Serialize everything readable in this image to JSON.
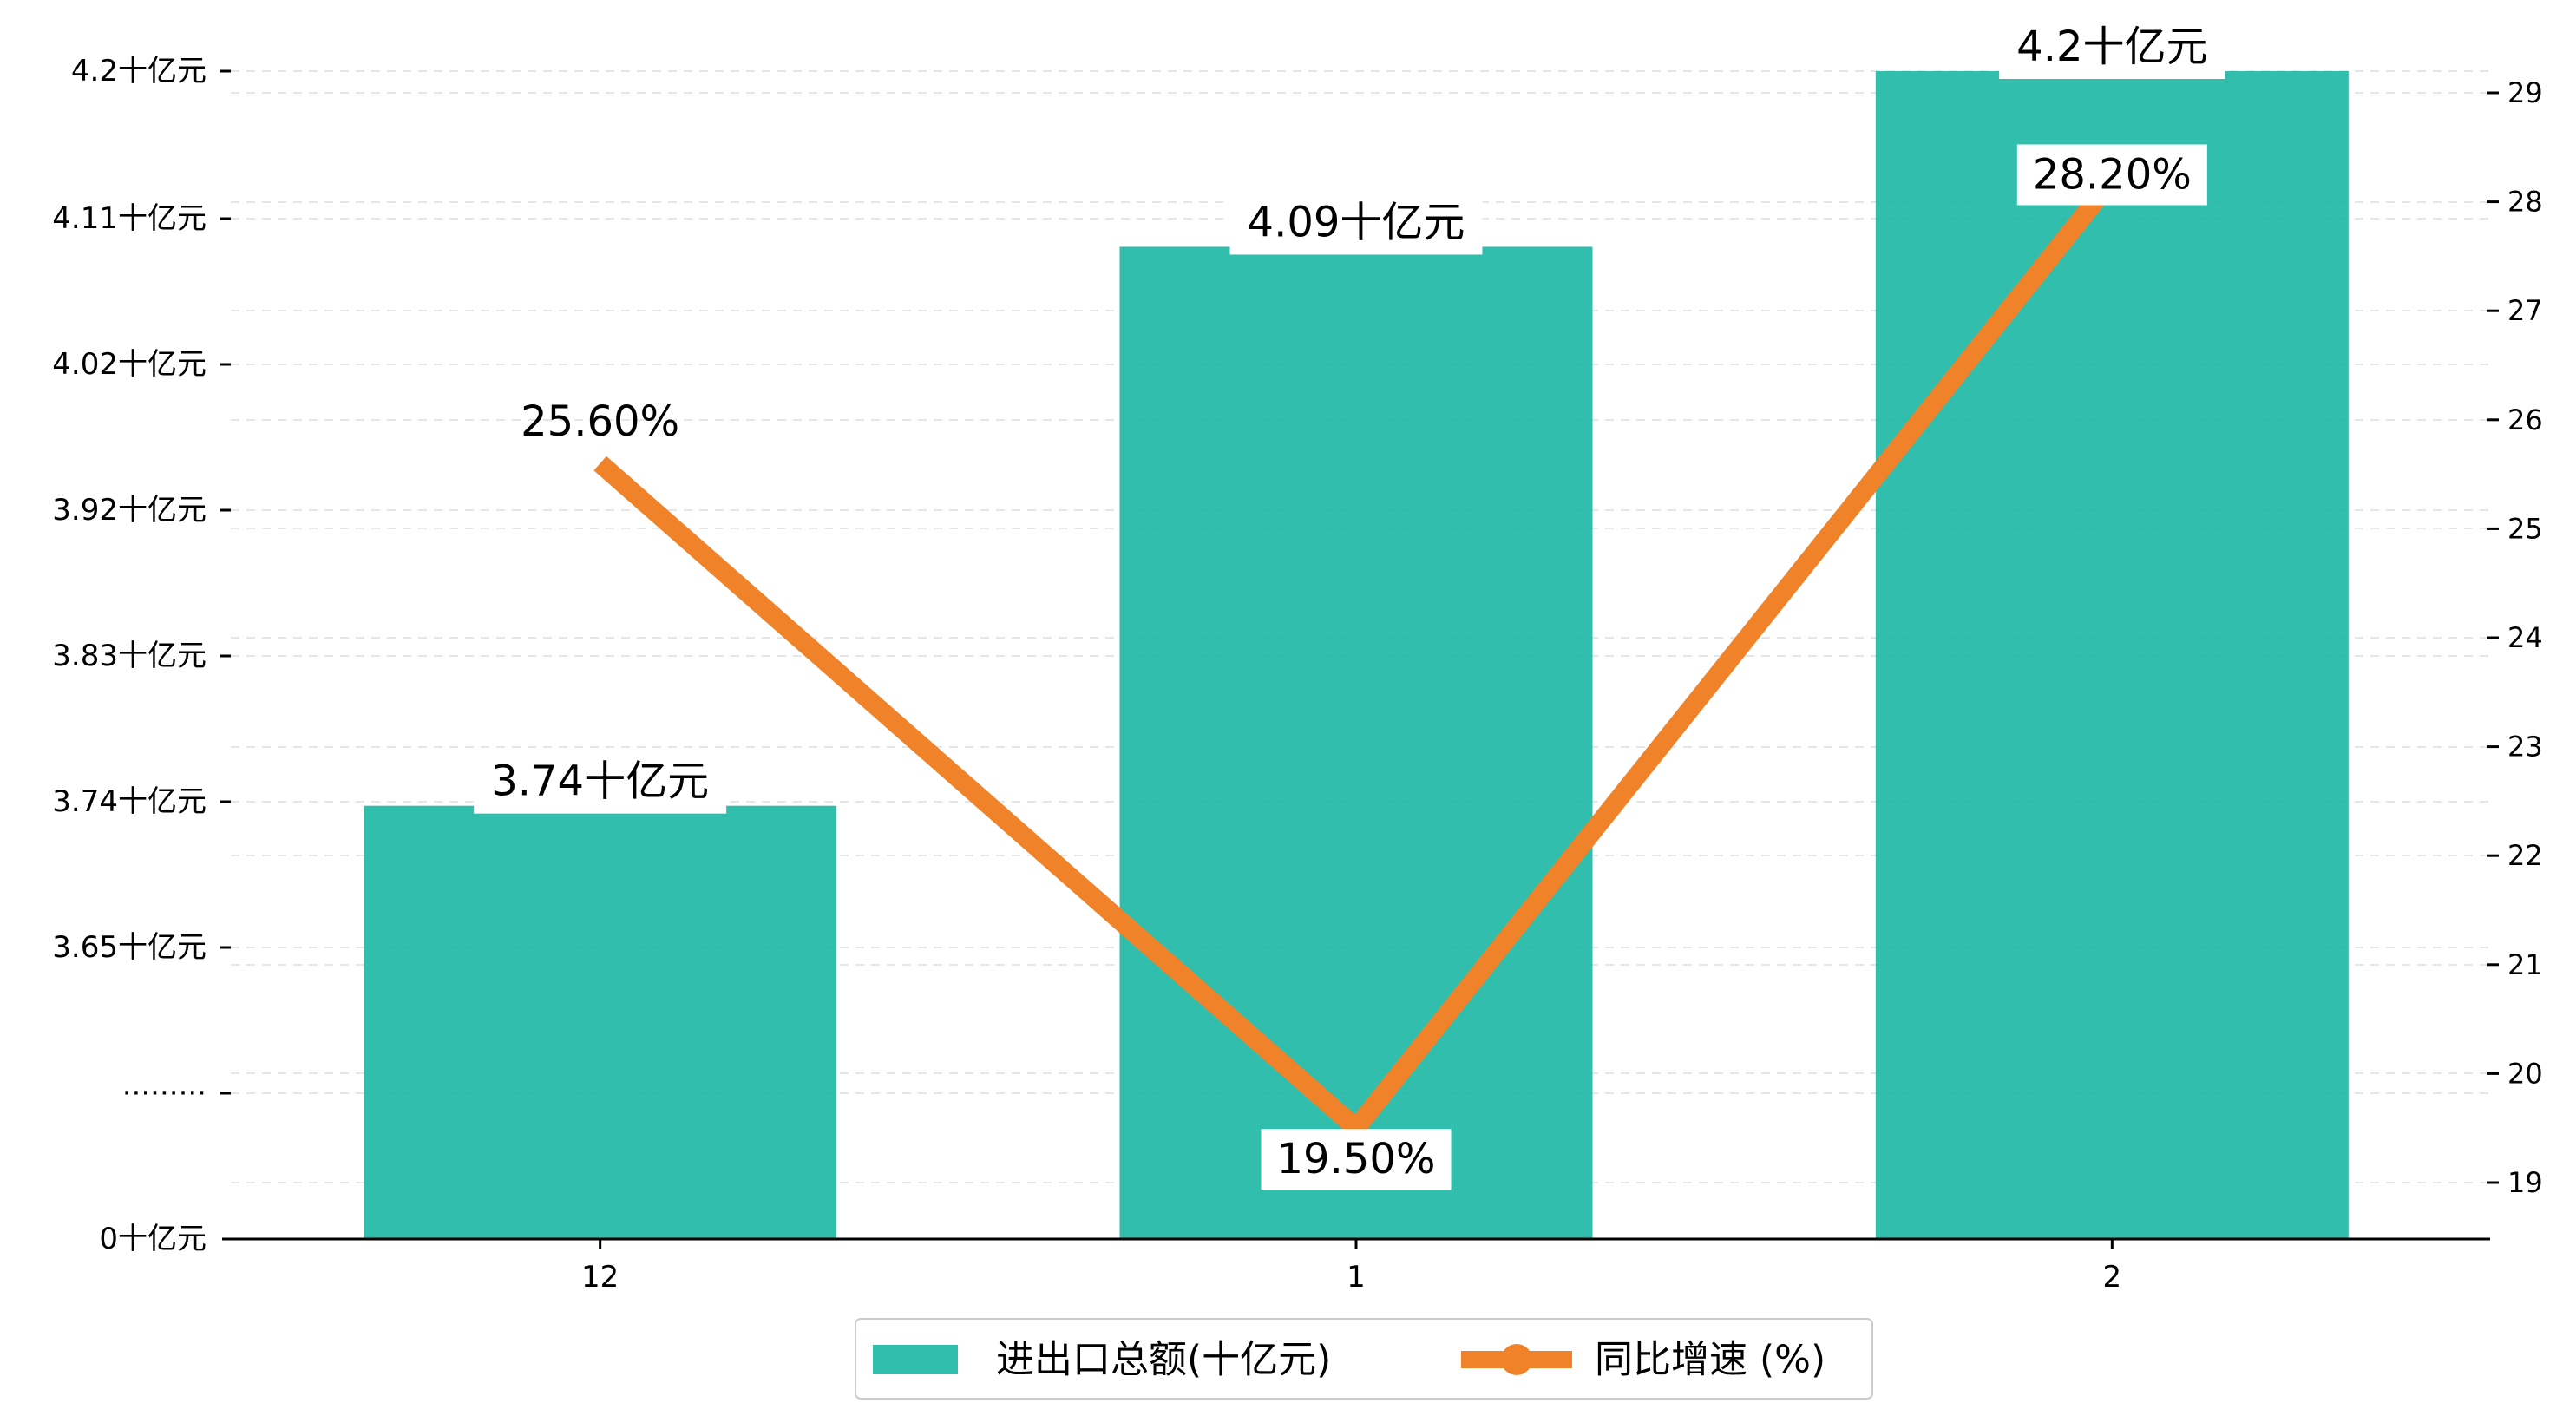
{
  "chart_data": {
    "type": "bar",
    "categories": [
      "12",
      "1",
      "2"
    ],
    "series": [
      {
        "name": "进出口总额(十亿元)",
        "kind": "bar",
        "axis": "left",
        "values": [
          3.74,
          4.09,
          4.2
        ],
        "labels": [
          "3.74十亿元",
          "4.09十亿元",
          "4.2十亿元"
        ],
        "color": "#1fb8a6"
      },
      {
        "name": "同比增速 (%)",
        "kind": "line",
        "axis": "right",
        "values": [
          25.6,
          19.5,
          28.2
        ],
        "labels": [
          "25.60%",
          "19.50%",
          "28.20%"
        ],
        "color": "#f0832a"
      }
    ],
    "left_axis": {
      "ticks": [
        "0十亿元",
        "·········",
        "3.65十亿元",
        "3.74十亿元",
        "3.83十亿元",
        "3.92十亿元",
        "4.02十亿元",
        "4.11十亿元",
        "4.2十亿元"
      ],
      "broken": true,
      "range": [
        3.56,
        4.2
      ]
    },
    "right_axis": {
      "ticks": [
        "19",
        "20",
        "21",
        "22",
        "23",
        "24",
        "25",
        "26",
        "27",
        "28",
        "29"
      ],
      "range": [
        18.5,
        29.2
      ]
    },
    "grid": "horizontal dashed",
    "legend_position": "bottom-center"
  }
}
